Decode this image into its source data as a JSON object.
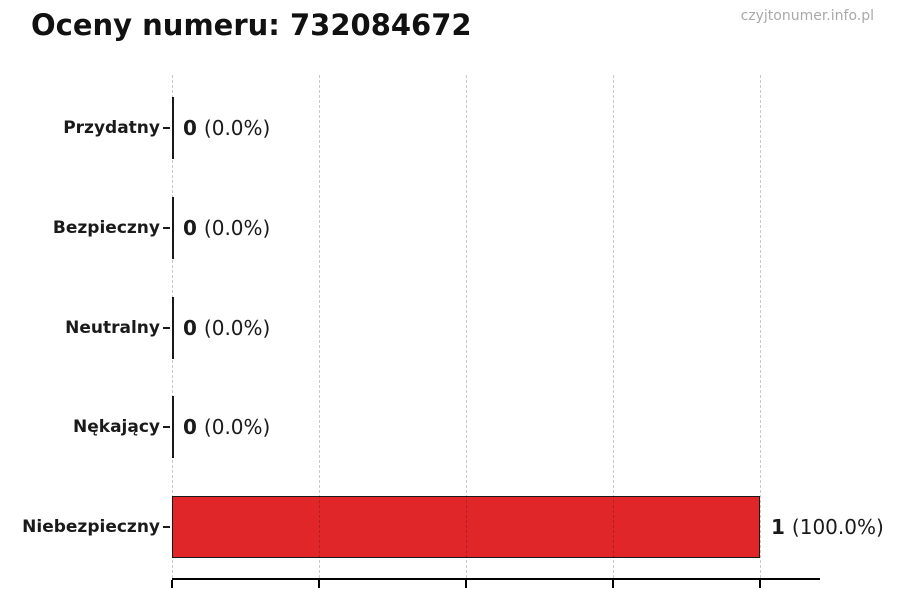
{
  "page": {
    "watermark": "czyjtonumer.info.pl"
  },
  "chart_data": {
    "type": "bar",
    "orientation": "horizontal",
    "title": "Oceny numeru: 732084672",
    "categories": [
      "Przydatny",
      "Bezpieczny",
      "Neutralny",
      "Nękający",
      "Niebezpieczny"
    ],
    "values": [
      0,
      0,
      0,
      0,
      1
    ],
    "value_labels": [
      {
        "count": "0",
        "pct": "(0.0%)"
      },
      {
        "count": "0",
        "pct": "(0.0%)"
      },
      {
        "count": "0",
        "pct": "(0.0%)"
      },
      {
        "count": "0",
        "pct": "(0.0%)"
      },
      {
        "count": "1",
        "pct": "(100.0%)"
      }
    ],
    "xlabel": "",
    "ylabel": "",
    "xlim": [
      0,
      1.1
    ],
    "xticks": [
      0,
      0.25,
      0.5,
      0.75,
      1.0
    ],
    "xtick_labels": [],
    "grid": "vertical dashed",
    "legend": "none",
    "bar_color": "#e12629",
    "bar_edge_color": "#1a1a1a",
    "background_color": "#ffffff"
  }
}
